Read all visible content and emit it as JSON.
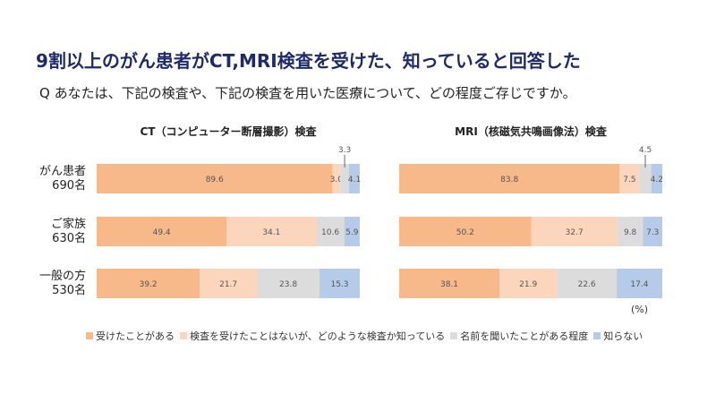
{
  "headline": "9割以上のがん患者がCT,MRI検査を受けた、知っていると回答した",
  "question": "Q あなたは、下記の検査や、下記の検査を用いた医療について、どの程度ご存じですか。",
  "unit": "(%)",
  "colors": {
    "received": "#f7b88a",
    "know": "#fbd6bc",
    "heard": "#dcdcdc",
    "unknown": "#b6cbe9"
  },
  "legend": [
    {
      "key": "received",
      "label": "受けたことがある"
    },
    {
      "key": "know",
      "label": "検査を受けたことはないが、どのような検査か知っている"
    },
    {
      "key": "heard",
      "label": "名前を聞いたことがある程度"
    },
    {
      "key": "unknown",
      "label": "知らない"
    }
  ],
  "chart_data": [
    {
      "type": "bar",
      "orientation": "horizontal-stacked-100",
      "title": "CT（コンピューター断層撮影）検査",
      "categories": [
        "がん患者|690名",
        "ご家族|630名",
        "一般の方|530名"
      ],
      "series": [
        {
          "name": "受けたことがある",
          "key": "received",
          "values": [
            89.6,
            49.4,
            39.2
          ]
        },
        {
          "name": "検査を受けたことはないが、どのような検査か知っている",
          "key": "know",
          "values": [
            3.0,
            34.1,
            21.7
          ]
        },
        {
          "name": "名前を聞いたことがある程度",
          "key": "heard",
          "values": [
            3.3,
            10.6,
            23.8
          ]
        },
        {
          "name": "知らない",
          "key": "unknown",
          "values": [
            4.1,
            5.9,
            15.3
          ]
        }
      ],
      "callouts": [
        {
          "row": 0,
          "series": 2,
          "label": "3.3"
        }
      ]
    },
    {
      "type": "bar",
      "orientation": "horizontal-stacked-100",
      "title": "MRI（核磁気共鳴画像法）検査",
      "categories": [
        "がん患者|690名",
        "ご家族|630名",
        "一般の方|530名"
      ],
      "series": [
        {
          "name": "受けたことがある",
          "key": "received",
          "values": [
            83.8,
            50.2,
            38.1
          ]
        },
        {
          "name": "検査を受けたことはないが、どのような検査か知っている",
          "key": "know",
          "values": [
            7.5,
            32.7,
            21.9
          ]
        },
        {
          "name": "名前を聞いたことがある程度",
          "key": "heard",
          "values": [
            4.5,
            9.8,
            22.6
          ]
        },
        {
          "name": "知らない",
          "key": "unknown",
          "values": [
            4.2,
            7.3,
            17.4
          ]
        }
      ],
      "callouts": [
        {
          "row": 0,
          "series": 2,
          "label": "4.5"
        }
      ]
    }
  ]
}
